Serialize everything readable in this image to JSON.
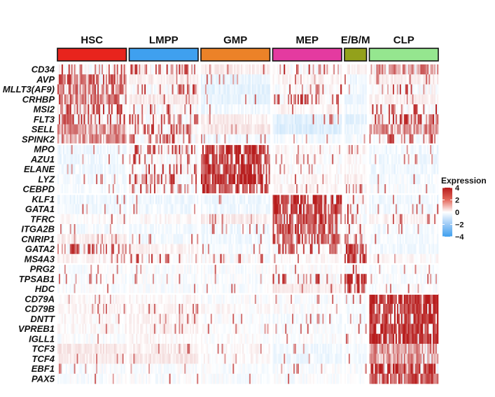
{
  "chart_data": {
    "type": "heatmap",
    "title": "",
    "xlabel": "",
    "ylabel": "",
    "groups": [
      {
        "name": "HSC",
        "color": "#e8241d",
        "cells": 50
      },
      {
        "name": "LMPP",
        "color": "#3fa0ef",
        "cells": 50
      },
      {
        "name": "GMP",
        "color": "#ec8228",
        "cells": 50
      },
      {
        "name": "MEP",
        "color": "#e43aa0",
        "cells": 50
      },
      {
        "name": "E/B/M",
        "color": "#93a11b",
        "cells": 16
      },
      {
        "name": "CLP",
        "color": "#95e68f",
        "cells": 50
      }
    ],
    "genes": [
      "CD34",
      "AVP",
      "MLLT3(AF9)",
      "CRHBP",
      "MSI2",
      "FLT3",
      "SELL",
      "SPINK2",
      "MPO",
      "AZU1",
      "ELANE",
      "LYZ",
      "CEBPD",
      "KLF1",
      "GATA1",
      "TFRC",
      "ITGA2B",
      "CNRIP1",
      "GATA2",
      "MS4A3",
      "PRG2",
      "TPSAB1",
      "HDC",
      "CD79A",
      "CD79B",
      "DNTT",
      "VPREB1",
      "IGLL1",
      "TCF3",
      "TCF4",
      "EBF1",
      "PAX5"
    ],
    "mean_expression": [
      [
        1.2,
        1.0,
        0.3,
        0.5,
        0.2,
        1.8
      ],
      [
        2.5,
        0.3,
        -0.4,
        0.2,
        -0.3,
        0.3
      ],
      [
        2.4,
        0.6,
        -0.5,
        1.0,
        -0.2,
        0.5
      ],
      [
        2.2,
        0.4,
        -0.5,
        0.7,
        -0.3,
        0.2
      ],
      [
        1.5,
        0.8,
        -0.3,
        0.2,
        -0.2,
        1.0
      ],
      [
        1.5,
        1.2,
        0.3,
        -0.6,
        -0.5,
        1.4
      ],
      [
        1.6,
        1.4,
        0.4,
        -0.7,
        -0.3,
        1.6
      ],
      [
        1.8,
        1.0,
        -0.3,
        -0.2,
        -0.2,
        1.2
      ],
      [
        -0.3,
        1.0,
        3.2,
        0.1,
        0.2,
        -0.3
      ],
      [
        -0.3,
        0.8,
        3.0,
        0.0,
        0.1,
        -0.3
      ],
      [
        -0.3,
        0.7,
        3.0,
        0.0,
        0.0,
        -0.3
      ],
      [
        -0.2,
        0.8,
        3.4,
        0.1,
        0.3,
        -0.2
      ],
      [
        -0.2,
        0.8,
        3.0,
        0.2,
        0.6,
        -0.1
      ],
      [
        -0.3,
        -0.3,
        -0.3,
        3.2,
        0.5,
        -0.3
      ],
      [
        -0.3,
        -0.3,
        -0.3,
        3.3,
        0.8,
        -0.3
      ],
      [
        0.0,
        0.1,
        0.3,
        2.8,
        0.8,
        0.2
      ],
      [
        -0.2,
        -0.2,
        -0.3,
        2.7,
        0.8,
        -0.2
      ],
      [
        0.3,
        -0.2,
        -0.3,
        2.6,
        1.2,
        -0.2
      ],
      [
        1.2,
        0.2,
        -0.2,
        0.8,
        3.0,
        -0.2
      ],
      [
        0.2,
        0.9,
        0.5,
        0.1,
        3.0,
        0.1
      ],
      [
        -0.1,
        -0.1,
        -0.1,
        0.0,
        0.8,
        -0.1
      ],
      [
        -0.1,
        -0.1,
        -0.1,
        0.8,
        3.0,
        -0.1
      ],
      [
        -0.1,
        -0.1,
        -0.1,
        0.4,
        3.2,
        -0.1
      ],
      [
        0.1,
        0.1,
        -0.1,
        -0.1,
        -0.1,
        3.3
      ],
      [
        0.2,
        0.2,
        0.1,
        0.0,
        -0.1,
        3.2
      ],
      [
        0.1,
        0.2,
        -0.1,
        -0.2,
        -0.2,
        3.4
      ],
      [
        0.1,
        0.1,
        0.0,
        -0.1,
        -0.1,
        3.4
      ],
      [
        -0.1,
        0.1,
        0.0,
        0.0,
        -0.1,
        3.3
      ],
      [
        0.4,
        0.3,
        0.1,
        -0.3,
        -0.2,
        1.7
      ],
      [
        0.3,
        0.4,
        0.1,
        -0.3,
        -0.2,
        1.6
      ],
      [
        -0.1,
        -0.1,
        -0.1,
        -0.1,
        -0.1,
        3.0
      ],
      [
        -0.1,
        -0.1,
        -0.1,
        -0.1,
        -0.1,
        2.8
      ]
    ],
    "row_separators_after": [
      "SPINK2",
      "CEBPD",
      "MS4A3",
      "HDC"
    ],
    "legend": {
      "title": "Expression",
      "ticks": [
        4,
        2,
        0,
        -2,
        -4
      ],
      "range": [
        -4,
        4
      ],
      "colors": {
        "low": "#3fa0ef",
        "mid": "#ffffff",
        "high": "#b71c1c"
      },
      "position": "right"
    }
  }
}
